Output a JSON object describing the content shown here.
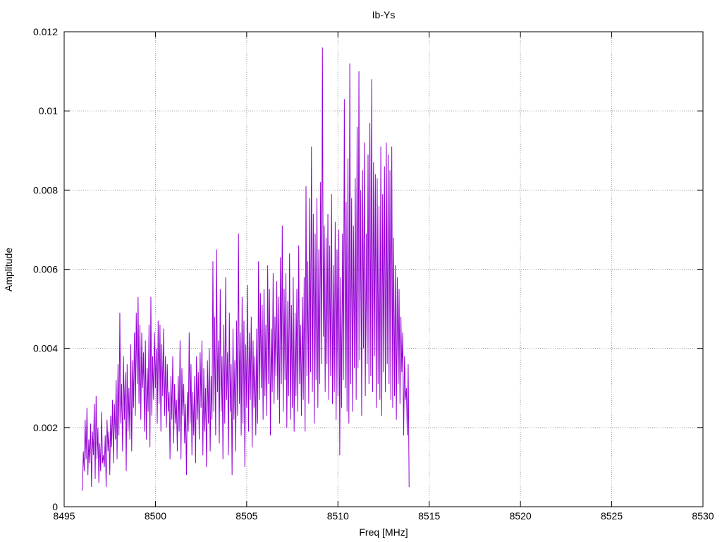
{
  "chart_data": {
    "type": "line",
    "title": "Ib-Ys",
    "xlabel": "Freq [MHz]",
    "ylabel": "Amplitude",
    "xlim": [
      8495,
      8530
    ],
    "ylim": [
      0,
      0.012
    ],
    "x_ticks": [
      8495,
      8500,
      8505,
      8510,
      8515,
      8520,
      8525,
      8530
    ],
    "y_ticks": [
      0,
      0.002,
      0.004,
      0.006,
      0.008,
      0.01,
      0.012
    ],
    "y_tick_labels": [
      "0",
      "0.002",
      "0.004",
      "0.006",
      "0.008",
      "0.01",
      "0.012"
    ],
    "grid": true,
    "grid_style": "dotted",
    "legend": "none",
    "series_color": "#9400d3",
    "series": [
      {
        "x_start": 8496.0,
        "x_step": 0.05,
        "values": [
          0.0004,
          0.0014,
          0.0009,
          0.0022,
          0.0012,
          0.0025,
          0.0008,
          0.0017,
          0.0011,
          0.0021,
          0.0005,
          0.0019,
          0.0013,
          0.0026,
          0.0007,
          0.0028,
          0.0012,
          0.002,
          0.0006,
          0.0016,
          0.0009,
          0.0024,
          0.0011,
          0.0013,
          0.001,
          0.0018,
          0.0005,
          0.0022,
          0.0014,
          0.0019,
          0.0008,
          0.0023,
          0.0015,
          0.0027,
          0.0011,
          0.0026,
          0.0017,
          0.0032,
          0.0012,
          0.0036,
          0.0018,
          0.0049,
          0.0021,
          0.0031,
          0.0014,
          0.0038,
          0.0022,
          0.0034,
          0.0009,
          0.0036,
          0.0019,
          0.003,
          0.0017,
          0.0041,
          0.0014,
          0.0037,
          0.0025,
          0.0044,
          0.0023,
          0.0049,
          0.0031,
          0.0053,
          0.0026,
          0.0046,
          0.0022,
          0.0044,
          0.003,
          0.0039,
          0.0019,
          0.0042,
          0.0017,
          0.0035,
          0.0024,
          0.0046,
          0.0015,
          0.0053,
          0.0023,
          0.0038,
          0.0027,
          0.0044,
          0.003,
          0.004,
          0.0021,
          0.0047,
          0.0026,
          0.0046,
          0.0019,
          0.0041,
          0.0028,
          0.0045,
          0.0023,
          0.0038,
          0.002,
          0.0036,
          0.0024,
          0.0029,
          0.0012,
          0.0033,
          0.0022,
          0.0038,
          0.0016,
          0.0031,
          0.0021,
          0.0027,
          0.0014,
          0.0033,
          0.0019,
          0.0042,
          0.0012,
          0.0035,
          0.0023,
          0.0031,
          0.0016,
          0.0026,
          0.0008,
          0.0029,
          0.0019,
          0.0044,
          0.0021,
          0.0036,
          0.0013,
          0.0029,
          0.0018,
          0.0033,
          0.0011,
          0.0038,
          0.0022,
          0.0034,
          0.0017,
          0.0039,
          0.0025,
          0.0042,
          0.0013,
          0.0035,
          0.0019,
          0.003,
          0.001,
          0.0037,
          0.0021,
          0.004,
          0.0014,
          0.0033,
          0.0022,
          0.0062,
          0.0024,
          0.0048,
          0.0018,
          0.0065,
          0.0029,
          0.0042,
          0.0016,
          0.0055,
          0.0024,
          0.0038,
          0.0012,
          0.0046,
          0.0021,
          0.0058,
          0.0027,
          0.0039,
          0.0013,
          0.0049,
          0.0024,
          0.0036,
          0.0008,
          0.0045,
          0.0022,
          0.0037,
          0.0014,
          0.0047,
          0.0023,
          0.0069,
          0.0026,
          0.0044,
          0.0018,
          0.0053,
          0.0021,
          0.0047,
          0.001,
          0.0041,
          0.0025,
          0.0056,
          0.0019,
          0.0044,
          0.0027,
          0.0048,
          0.0015,
          0.0042,
          0.0025,
          0.0038,
          0.0018,
          0.0045,
          0.0021,
          0.0062,
          0.0027,
          0.0054,
          0.003,
          0.0051,
          0.0022,
          0.0055,
          0.0028,
          0.0046,
          0.0023,
          0.0061,
          0.0031,
          0.0055,
          0.0018,
          0.0045,
          0.0029,
          0.0059,
          0.0026,
          0.0048,
          0.0033,
          0.0057,
          0.0027,
          0.0053,
          0.0021,
          0.0063,
          0.0031,
          0.0071,
          0.0024,
          0.0055,
          0.0032,
          0.0059,
          0.002,
          0.0052,
          0.0028,
          0.0064,
          0.0022,
          0.0051,
          0.0025,
          0.0058,
          0.0019,
          0.0049,
          0.0028,
          0.0055,
          0.0024,
          0.0066,
          0.0031,
          0.0046,
          0.0023,
          0.0053,
          0.0027,
          0.0058,
          0.0019,
          0.0081,
          0.0033,
          0.0062,
          0.0026,
          0.0078,
          0.0034,
          0.0091,
          0.0029,
          0.0074,
          0.0021,
          0.0069,
          0.0032,
          0.0078,
          0.0025,
          0.0065,
          0.0031,
          0.0082,
          0.0036,
          0.0116,
          0.0043,
          0.0071,
          0.0029,
          0.0068,
          0.0036,
          0.0074,
          0.0027,
          0.0066,
          0.0033,
          0.0079,
          0.0026,
          0.0061,
          0.0029,
          0.0072,
          0.0022,
          0.0065,
          0.0028,
          0.007,
          0.0013,
          0.0058,
          0.0025,
          0.0069,
          0.0032,
          0.0103,
          0.003,
          0.0077,
          0.0024,
          0.0088,
          0.0021,
          0.0112,
          0.0031,
          0.0078,
          0.0024,
          0.0071,
          0.0035,
          0.0083,
          0.0027,
          0.0096,
          0.0035,
          0.011,
          0.0037,
          0.008,
          0.0023,
          0.0085,
          0.004,
          0.0092,
          0.0028,
          0.0069,
          0.0036,
          0.0089,
          0.0031,
          0.0097,
          0.0033,
          0.0108,
          0.0029,
          0.0087,
          0.0038,
          0.0084,
          0.0025,
          0.0083,
          0.0031,
          0.0076,
          0.0027,
          0.0091,
          0.0023,
          0.0079,
          0.0034,
          0.0086,
          0.0029,
          0.0092,
          0.0036,
          0.0089,
          0.0031,
          0.0085,
          0.0027,
          0.0091,
          0.0025,
          0.0068,
          0.0028,
          0.0061,
          0.0022,
          0.0058,
          0.0031,
          0.0055,
          0.0026,
          0.0048,
          0.0034,
          0.0044,
          0.0018,
          0.0038,
          0.0027,
          0.003,
          0.0018,
          0.0036,
          0.0005
        ]
      }
    ]
  }
}
